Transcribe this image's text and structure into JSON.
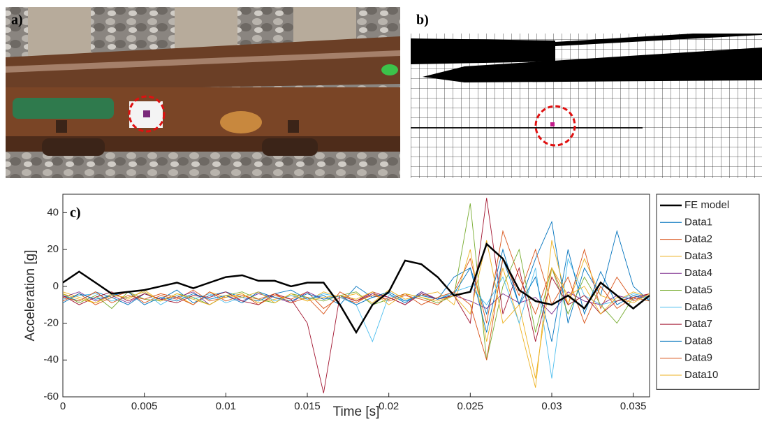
{
  "panels": {
    "a": "a)",
    "b": "b)"
  },
  "chart_data": {
    "type": "line",
    "panel_label": "c)",
    "x_label": "Time [s]",
    "y_label": "Acceleration [g]",
    "xlim": [
      0,
      0.036
    ],
    "ylim": [
      -60,
      50
    ],
    "xticks": [
      0,
      0.005,
      0.01,
      0.015,
      0.02,
      0.025,
      0.03,
      0.035
    ],
    "yticks": [
      -60,
      -40,
      -20,
      0,
      20,
      40
    ],
    "x": [
      0,
      0.001,
      0.002,
      0.003,
      0.004,
      0.005,
      0.006,
      0.007,
      0.008,
      0.009,
      0.01,
      0.011,
      0.012,
      0.013,
      0.014,
      0.015,
      0.016,
      0.017,
      0.018,
      0.019,
      0.02,
      0.021,
      0.022,
      0.023,
      0.024,
      0.025,
      0.026,
      0.027,
      0.028,
      0.029,
      0.03,
      0.031,
      0.032,
      0.033,
      0.034,
      0.035,
      0.036
    ],
    "legend": "outside-right",
    "series": [
      {
        "name": "FE model",
        "color": "#000000",
        "values": [
          2,
          8,
          2,
          -4,
          -3,
          -2,
          0,
          2,
          -1,
          2,
          5,
          6,
          3,
          3,
          0,
          2,
          2,
          -10,
          -25,
          -10,
          -3,
          14,
          12,
          5,
          -5,
          -3,
          23,
          15,
          -2,
          -8,
          -10,
          -5,
          -12,
          2,
          -5,
          -12,
          -5
        ]
      },
      {
        "name": "Data1",
        "color": "#0072BD",
        "values": [
          -5,
          -8,
          -3,
          -6,
          -10,
          -4,
          -7,
          -2,
          -9,
          -5,
          -3,
          -6,
          -8,
          -4,
          -2,
          -7,
          -5,
          -10,
          0,
          -6,
          -4,
          -9,
          -3,
          -7,
          5,
          10,
          -15,
          20,
          -10,
          15,
          35,
          -20,
          10,
          -5,
          30,
          0,
          -8
        ]
      },
      {
        "name": "Data2",
        "color": "#D95319",
        "values": [
          -8,
          -4,
          -10,
          -6,
          -3,
          -9,
          -5,
          -7,
          -2,
          -8,
          -6,
          -4,
          -10,
          -5,
          -7,
          -3,
          -12,
          -6,
          -9,
          -4,
          -8,
          -5,
          -7,
          -10,
          -3,
          15,
          -20,
          30,
          5,
          -15,
          10,
          -10,
          20,
          -12,
          5,
          -8,
          -4
        ]
      },
      {
        "name": "Data3",
        "color": "#EDB120",
        "values": [
          -3,
          -6,
          -9,
          -4,
          -7,
          -2,
          -8,
          -5,
          -10,
          -3,
          -6,
          -4,
          -9,
          -7,
          -5,
          -8,
          -3,
          -6,
          -4,
          -9,
          -2,
          -7,
          -5,
          -3,
          -10,
          20,
          -30,
          10,
          -20,
          -55,
          25,
          -10,
          15,
          -5,
          -8,
          -3,
          -6
        ]
      },
      {
        "name": "Data4",
        "color": "#7E2F8E",
        "values": [
          -6,
          -3,
          -8,
          -5,
          -9,
          -4,
          -7,
          -6,
          -3,
          -10,
          -5,
          -8,
          -4,
          -6,
          -9,
          -3,
          -7,
          -5,
          -8,
          -4,
          -6,
          -10,
          -3,
          -7,
          -5,
          -8,
          -12,
          -4,
          -9,
          -6,
          -15,
          -3,
          -8,
          -10,
          -5,
          -7,
          -4
        ]
      },
      {
        "name": "Data5",
        "color": "#77AC30",
        "values": [
          -4,
          -9,
          -5,
          -12,
          -3,
          -7,
          -8,
          -4,
          -6,
          -10,
          -5,
          -3,
          -7,
          -9,
          -4,
          -6,
          -8,
          -5,
          -3,
          -10,
          -7,
          -4,
          -6,
          -9,
          -5,
          45,
          -40,
          0,
          20,
          -25,
          10,
          -15,
          5,
          -10,
          -20,
          -6,
          -8
        ]
      },
      {
        "name": "Data6",
        "color": "#4DBEEE",
        "values": [
          -7,
          -5,
          -4,
          -8,
          -6,
          -3,
          -10,
          -5,
          -7,
          -4,
          -9,
          -6,
          -3,
          -8,
          -5,
          -7,
          -4,
          -6,
          -10,
          -30,
          -5,
          -8,
          -4,
          -7,
          -3,
          0,
          -10,
          5,
          -20,
          10,
          -50,
          15,
          -5,
          -10,
          -8,
          -4,
          -6
        ]
      },
      {
        "name": "Data7",
        "color": "#A2142F",
        "values": [
          -5,
          -10,
          -6,
          -3,
          -8,
          -4,
          -7,
          -9,
          -5,
          -6,
          -3,
          -8,
          -10,
          -4,
          -7,
          -20,
          -58,
          -5,
          -8,
          -3,
          -6,
          -10,
          -4,
          -7,
          -5,
          -20,
          48,
          -15,
          10,
          -30,
          5,
          -10,
          -5,
          -15,
          -8,
          -6,
          -4
        ]
      },
      {
        "name": "Data8",
        "color": "#0072BD",
        "values": [
          -9,
          -4,
          -7,
          -5,
          -3,
          -10,
          -6,
          -8,
          -4,
          -7,
          -5,
          -9,
          -3,
          -6,
          -8,
          -4,
          -7,
          -5,
          -10,
          -6,
          -3,
          -8,
          -5,
          -7,
          -4,
          10,
          -25,
          15,
          -10,
          5,
          -30,
          20,
          -15,
          8,
          -10,
          -5,
          -7
        ]
      },
      {
        "name": "Data9",
        "color": "#D95319",
        "values": [
          -6,
          -8,
          -3,
          -9,
          -5,
          -7,
          -4,
          -6,
          -10,
          -3,
          -8,
          -5,
          -7,
          -4,
          -9,
          -6,
          -15,
          -3,
          -8,
          -5,
          -7,
          -4,
          -10,
          -6,
          -3,
          -10,
          -40,
          15,
          -5,
          20,
          -10,
          5,
          -20,
          0,
          -12,
          -6,
          -8
        ]
      },
      {
        "name": "Data10",
        "color": "#EDB120",
        "values": [
          -4,
          -7,
          -9,
          -5,
          -6,
          -3,
          -8,
          -4,
          -7,
          -10,
          -5,
          -6,
          -3,
          -9,
          -4,
          -8,
          -6,
          -5,
          -7,
          -3,
          -10,
          -4,
          -6,
          -8,
          -5,
          -15,
          25,
          -20,
          -10,
          -50,
          10,
          -5,
          0,
          -15,
          -6,
          -9,
          -4
        ]
      }
    ]
  }
}
